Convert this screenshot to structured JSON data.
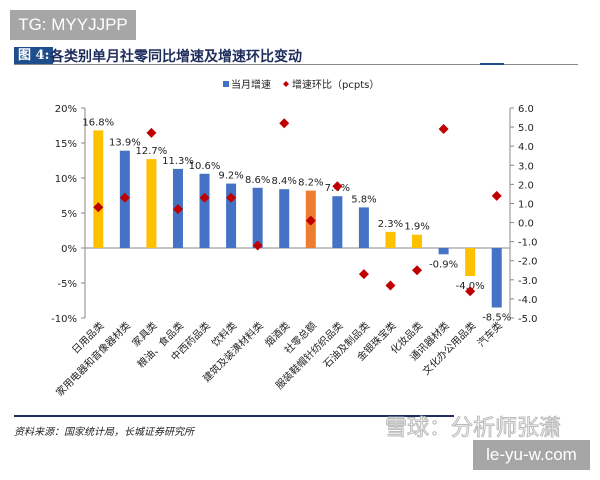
{
  "watermark_top": "TG: MYYJJPP",
  "figure_label": "图 4:",
  "chart_data": {
    "type": "bar",
    "title": "各类别单月社零同比增速及增速环比变动",
    "categories": [
      "日用品类",
      "家用电器和音像器材类",
      "家具类",
      "粮油、食品类",
      "中西药品类",
      "饮料类",
      "建筑及装潢材料类",
      "烟酒类",
      "社零总额",
      "服装鞋帽针纺织品类",
      "石油及制品类",
      "金银珠宝类",
      "化妆品类",
      "通讯器材类",
      "文化办公用品类",
      "汽车类"
    ],
    "series": [
      {
        "name": "当月增速",
        "type": "bar",
        "axis": "left",
        "unit": "%",
        "values": [
          16.8,
          13.9,
          12.7,
          11.3,
          10.6,
          9.2,
          8.6,
          8.4,
          8.2,
          7.4,
          5.8,
          2.3,
          1.9,
          -0.9,
          -4.0,
          -8.5
        ],
        "data_labels": [
          "16.8%",
          "13.9%",
          "12.7%",
          "11.3%",
          "10.6%",
          "9.2%",
          "8.6%",
          "8.4%",
          "8.2%",
          "7.4%",
          "5.8%",
          "2.3%",
          "1.9%",
          "-0.9%",
          "-4.0%",
          "-8.5%"
        ],
        "bar_colors": [
          "#FFC000",
          "#4472C4",
          "#FFC000",
          "#4472C4",
          "#4472C4",
          "#4472C4",
          "#4472C4",
          "#4472C4",
          "#ED7D31",
          "#4472C4",
          "#4472C4",
          "#FFC000",
          "#FFC000",
          "#4472C4",
          "#FFC000",
          "#4472C4"
        ]
      },
      {
        "name": "增速环比（pcpts）",
        "type": "scatter",
        "axis": "right",
        "marker": "diamond",
        "color": "#C00000",
        "values": [
          0.8,
          1.3,
          4.7,
          0.7,
          1.3,
          1.3,
          -1.2,
          5.2,
          0.1,
          1.9,
          -2.7,
          -3.3,
          -2.5,
          4.9,
          -3.6,
          1.4
        ]
      }
    ],
    "left_axis": {
      "range": [
        -10,
        20
      ],
      "ticks": [
        "20%",
        "15%",
        "10%",
        "5%",
        "0%",
        "-5%",
        "-10%"
      ]
    },
    "right_axis": {
      "range": [
        -5,
        6
      ],
      "ticks": [
        "6.0",
        "5.0",
        "4.0",
        "3.0",
        "2.0",
        "1.0",
        "0.0",
        "-1.0",
        "-2.0",
        "-3.0",
        "-4.0",
        "-5.0"
      ]
    },
    "legend_placement": "top",
    "grid": false
  },
  "source": "资料来源：国家统计局，长城证券研究所",
  "watermark_bottom": "雪球：分析师张潇",
  "watermark_site": "le-yu-w.com"
}
